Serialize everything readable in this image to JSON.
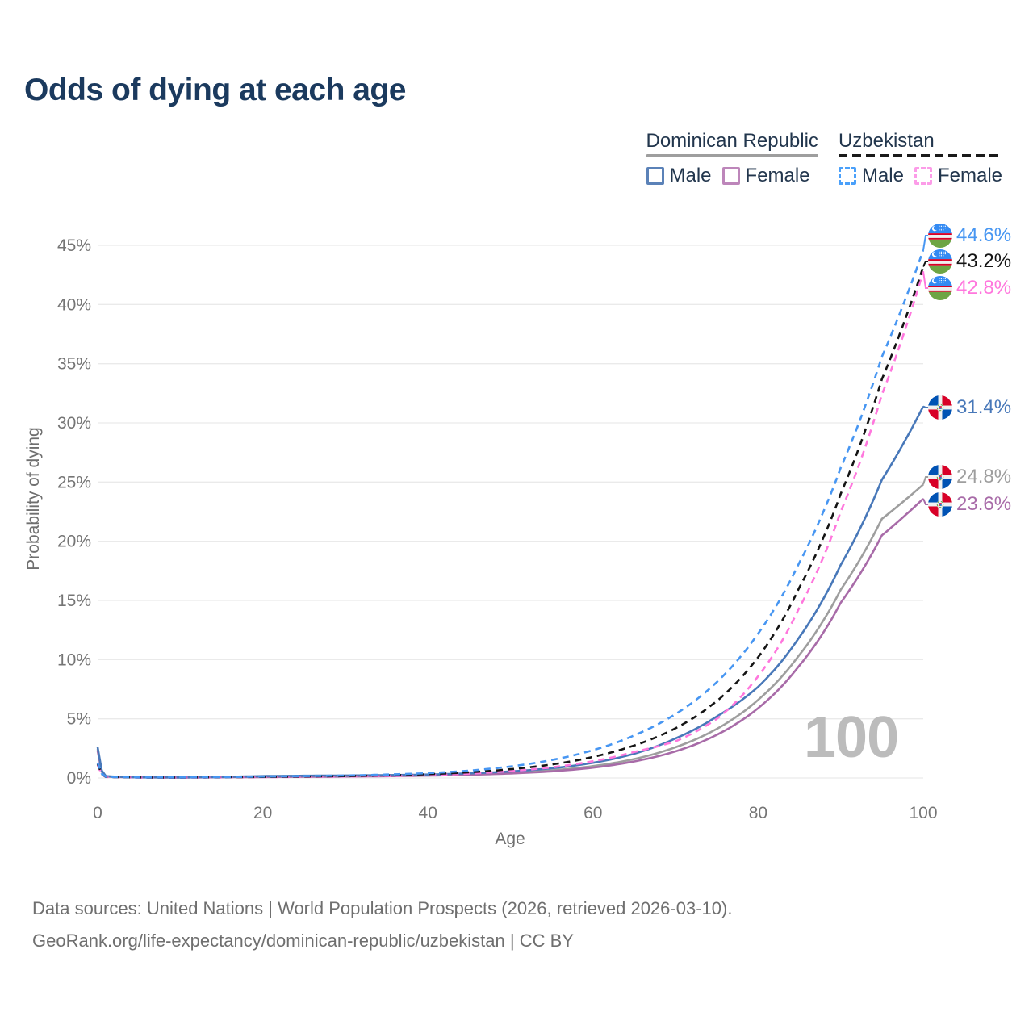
{
  "title": "Odds of dying at each age",
  "watermark": "100",
  "legend": {
    "groups": [
      {
        "name": "Dominican Republic",
        "line_style": "solid",
        "line_color": "#9e9e9e",
        "items": [
          {
            "label": "Male",
            "box_style": "solid",
            "box_color": "#5b82b8"
          },
          {
            "label": "Female",
            "box_style": "solid",
            "box_color": "#bd86ba"
          }
        ]
      },
      {
        "name": "Uzbekistan",
        "line_style": "dashed",
        "line_color": "#1a1a1a",
        "items": [
          {
            "label": "Male",
            "box_style": "dashed",
            "box_color": "#4aa0fa"
          },
          {
            "label": "Female",
            "box_style": "dashed",
            "box_color": "#fc9ce8"
          }
        ]
      }
    ]
  },
  "footer": {
    "line1": "Data sources: United Nations | World Population Prospects (2026, retrieved 2026-03-10).",
    "line2": "GeoRank.org/life-expectancy/dominican-republic/uzbekistan | CC BY"
  },
  "chart_data": {
    "type": "line",
    "title": "Odds of dying at each age",
    "xlabel": "Age",
    "ylabel": "Probability of dying",
    "xlim": [
      0,
      100
    ],
    "ylim": [
      0,
      45
    ],
    "x_ticks": [
      0,
      20,
      40,
      60,
      80,
      100
    ],
    "y_ticks_percent": [
      0,
      5,
      10,
      15,
      20,
      25,
      30,
      35,
      40,
      45
    ],
    "grid": true,
    "legend_position": "top-right",
    "y_unit": "%",
    "series": [
      {
        "id": "do-both",
        "country": "Dominican Republic",
        "sex": "Both sexes",
        "line_style": "solid",
        "color": "#9e9e9e",
        "flag": "dominican-republic",
        "end_value": 24.8,
        "end_label": "24.8%",
        "points_age_pct": [
          [
            0,
            2.45
          ],
          [
            1,
            0.14
          ],
          [
            5,
            0.055
          ],
          [
            10,
            0.045
          ],
          [
            15,
            0.075
          ],
          [
            20,
            0.12
          ],
          [
            25,
            0.14
          ],
          [
            30,
            0.16
          ],
          [
            35,
            0.19
          ],
          [
            40,
            0.24
          ],
          [
            45,
            0.31
          ],
          [
            50,
            0.44
          ],
          [
            55,
            0.64
          ],
          [
            60,
            1.0
          ],
          [
            65,
            1.6
          ],
          [
            70,
            2.6
          ],
          [
            75,
            4.15
          ],
          [
            80,
            6.6
          ],
          [
            85,
            10.4
          ],
          [
            90,
            15.9
          ],
          [
            95,
            21.9
          ],
          [
            100,
            24.8
          ]
        ]
      },
      {
        "id": "do-female",
        "country": "Dominican Republic",
        "sex": "Female",
        "line_style": "solid",
        "color": "#a86ba8",
        "flag": "dominican-republic",
        "end_value": 23.6,
        "end_label": "23.6%",
        "points_age_pct": [
          [
            0,
            2.3
          ],
          [
            1,
            0.12
          ],
          [
            5,
            0.05
          ],
          [
            10,
            0.04
          ],
          [
            15,
            0.06
          ],
          [
            20,
            0.08
          ],
          [
            25,
            0.1
          ],
          [
            30,
            0.12
          ],
          [
            35,
            0.15
          ],
          [
            40,
            0.2
          ],
          [
            45,
            0.27
          ],
          [
            50,
            0.38
          ],
          [
            55,
            0.56
          ],
          [
            60,
            0.87
          ],
          [
            65,
            1.4
          ],
          [
            70,
            2.25
          ],
          [
            75,
            3.65
          ],
          [
            80,
            5.9
          ],
          [
            85,
            9.5
          ],
          [
            90,
            14.8
          ],
          [
            95,
            20.5
          ],
          [
            100,
            23.6
          ]
        ]
      },
      {
        "id": "do-male",
        "country": "Dominican Republic",
        "sex": "Male",
        "line_style": "solid",
        "color": "#4878b9",
        "flag": "dominican-republic",
        "end_value": 31.4,
        "end_label": "31.4%",
        "points_age_pct": [
          [
            0,
            2.6
          ],
          [
            1,
            0.15
          ],
          [
            5,
            0.06
          ],
          [
            10,
            0.05
          ],
          [
            15,
            0.09
          ],
          [
            20,
            0.16
          ],
          [
            25,
            0.19
          ],
          [
            30,
            0.21
          ],
          [
            35,
            0.24
          ],
          [
            40,
            0.29
          ],
          [
            45,
            0.39
          ],
          [
            50,
            0.55
          ],
          [
            55,
            0.82
          ],
          [
            60,
            1.28
          ],
          [
            65,
            2.05
          ],
          [
            70,
            3.35
          ],
          [
            75,
            5.2
          ],
          [
            80,
            7.7
          ],
          [
            85,
            11.9
          ],
          [
            90,
            18.0
          ],
          [
            95,
            25.2
          ],
          [
            100,
            31.4
          ]
        ]
      },
      {
        "id": "uz-female",
        "country": "Uzbekistan",
        "sex": "Female",
        "line_style": "dashed",
        "color": "#ff77dd",
        "flag": "uzbekistan",
        "end_value": 42.8,
        "end_label": "42.8%",
        "points_age_pct": [
          [
            0,
            1.1
          ],
          [
            1,
            0.08
          ],
          [
            5,
            0.04
          ],
          [
            10,
            0.035
          ],
          [
            15,
            0.05
          ],
          [
            20,
            0.07
          ],
          [
            25,
            0.09
          ],
          [
            30,
            0.12
          ],
          [
            35,
            0.17
          ],
          [
            40,
            0.24
          ],
          [
            45,
            0.37
          ],
          [
            50,
            0.58
          ],
          [
            55,
            0.9
          ],
          [
            60,
            1.42
          ],
          [
            65,
            2.2
          ],
          [
            70,
            3.1
          ],
          [
            75,
            5.0
          ],
          [
            80,
            8.6
          ],
          [
            85,
            14.4
          ],
          [
            90,
            22.5
          ],
          [
            95,
            32.4
          ],
          [
            100,
            42.8
          ]
        ]
      },
      {
        "id": "uz-both",
        "country": "Uzbekistan",
        "sex": "Both sexes",
        "line_style": "dashed",
        "color": "#141414",
        "flag": "uzbekistan",
        "end_value": 43.2,
        "end_label": "43.2%",
        "points_age_pct": [
          [
            0,
            1.2
          ],
          [
            1,
            0.09
          ],
          [
            5,
            0.045
          ],
          [
            10,
            0.04
          ],
          [
            15,
            0.06
          ],
          [
            20,
            0.09
          ],
          [
            25,
            0.12
          ],
          [
            30,
            0.16
          ],
          [
            35,
            0.22
          ],
          [
            40,
            0.32
          ],
          [
            45,
            0.48
          ],
          [
            50,
            0.74
          ],
          [
            55,
            1.14
          ],
          [
            60,
            1.78
          ],
          [
            65,
            2.75
          ],
          [
            70,
            4.2
          ],
          [
            75,
            6.5
          ],
          [
            80,
            10.2
          ],
          [
            85,
            16.1
          ],
          [
            90,
            24.0
          ],
          [
            95,
            33.7
          ],
          [
            100,
            43.2
          ]
        ]
      },
      {
        "id": "uz-male",
        "country": "Uzbekistan",
        "sex": "Male",
        "line_style": "dashed",
        "color": "#4796f2",
        "flag": "uzbekistan",
        "end_value": 44.6,
        "end_label": "44.6%",
        "points_age_pct": [
          [
            0,
            1.3
          ],
          [
            1,
            0.1
          ],
          [
            5,
            0.05
          ],
          [
            10,
            0.045
          ],
          [
            15,
            0.07
          ],
          [
            20,
            0.12
          ],
          [
            25,
            0.16
          ],
          [
            30,
            0.21
          ],
          [
            35,
            0.29
          ],
          [
            40,
            0.41
          ],
          [
            45,
            0.62
          ],
          [
            50,
            0.97
          ],
          [
            55,
            1.52
          ],
          [
            60,
            2.35
          ],
          [
            65,
            3.6
          ],
          [
            70,
            5.4
          ],
          [
            75,
            8.1
          ],
          [
            80,
            12.2
          ],
          [
            85,
            18.2
          ],
          [
            90,
            26.2
          ],
          [
            95,
            35.6
          ],
          [
            100,
            44.6
          ]
        ]
      }
    ]
  }
}
